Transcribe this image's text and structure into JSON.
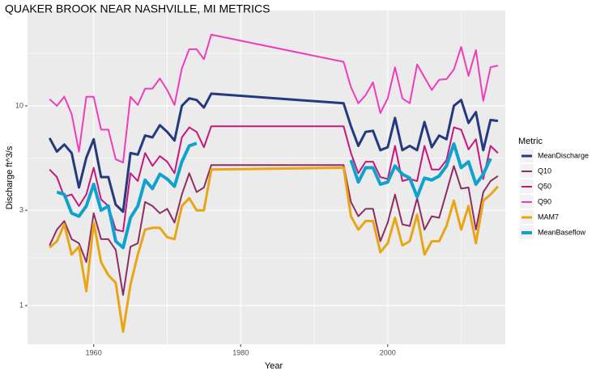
{
  "chart_data": {
    "type": "line",
    "title": "QUAKER BROOK NEAR NASHVILLE, MI  METRICS",
    "x_label": "Year",
    "y_label": "Discharge ft^3/s",
    "legend_title": "Metric",
    "legend_position": "right",
    "log_y": true,
    "grid": true,
    "xlim": [
      1951,
      2016
    ],
    "xticks": [
      1960,
      1980,
      2000
    ],
    "ylim": [
      0.64,
      30
    ],
    "yticks": [
      1,
      3,
      10
    ],
    "x": [
      1954,
      1955,
      1956,
      1957,
      1958,
      1959,
      1960,
      1961,
      1962,
      1963,
      1964,
      1965,
      1966,
      1967,
      1968,
      1969,
      1970,
      1971,
      1972,
      1973,
      1974,
      1975,
      1976,
      1994,
      1995,
      1996,
      1997,
      1998,
      1999,
      2000,
      2001,
      2002,
      2003,
      2004,
      2005,
      2006,
      2007,
      2008,
      2009,
      2010,
      2011,
      2012,
      2013,
      2014,
      2015
    ],
    "series": [
      {
        "name": "MeanDischarge",
        "color": "#25397f",
        "line_width": 3,
        "values": [
          6.9,
          5.9,
          6.4,
          5.8,
          3.9,
          5.5,
          6.8,
          4.4,
          4.4,
          3.2,
          2.95,
          5.8,
          5.7,
          7.1,
          6.95,
          8.0,
          7.4,
          6.7,
          10,
          10.9,
          10.7,
          9.8,
          11.5,
          10.3,
          7.9,
          6.3,
          7.4,
          7.5,
          6.0,
          6.2,
          8.7,
          6.0,
          6.3,
          6.0,
          8.3,
          6.2,
          7.1,
          6.8,
          10,
          10.7,
          8.2,
          9.3,
          6.0,
          8.5,
          8.4
        ]
      },
      {
        "name": "Q10",
        "color": "#8e2d62",
        "line_width": 2,
        "values": [
          2.0,
          2.4,
          2.65,
          2.15,
          2.05,
          1.65,
          2.9,
          2.15,
          2.15,
          1.9,
          1.13,
          1.97,
          2.05,
          3.3,
          3.15,
          2.9,
          3.05,
          2.6,
          3.6,
          4.6,
          3.7,
          3.9,
          5.05,
          5.05,
          3.3,
          2.8,
          3.05,
          3.05,
          2.1,
          2.6,
          3.6,
          2.55,
          2.5,
          3.45,
          2.4,
          2.8,
          2.75,
          3.7,
          5.0,
          3.85,
          3.9,
          2.4,
          3.7,
          4.2,
          4.45
        ]
      },
      {
        "name": "Q50",
        "color": "#c4197c",
        "line_width": 2,
        "values": [
          4.8,
          4.4,
          3.5,
          3.6,
          3.15,
          3.6,
          4.9,
          3.4,
          3.15,
          2.4,
          2.35,
          4.6,
          4.2,
          5.8,
          5.0,
          5.6,
          5.25,
          4.6,
          6.95,
          7.8,
          7.4,
          6.2,
          7.9,
          7.9,
          5.8,
          4.6,
          5.25,
          5.25,
          4.4,
          4.3,
          6.3,
          4.2,
          4.3,
          4.2,
          6.3,
          4.8,
          4.8,
          5.35,
          7.8,
          7.6,
          6.05,
          6.8,
          4.3,
          6.3,
          5.8
        ]
      },
      {
        "name": "Q90",
        "color": "#f03cbc",
        "line_width": 2,
        "values": [
          10.8,
          10,
          11.1,
          9.1,
          5.9,
          11.1,
          11.1,
          7.6,
          7.6,
          5.4,
          5.2,
          11.1,
          10.1,
          12.2,
          12.2,
          13.7,
          12,
          10.1,
          15.4,
          19.2,
          19.2,
          17.1,
          22.7,
          16.6,
          12.4,
          10.3,
          11.3,
          13.1,
          9.2,
          10.9,
          15.6,
          10.9,
          10.3,
          16.1,
          13.9,
          12,
          13.5,
          13.6,
          15.2,
          19.7,
          14.1,
          19.0,
          10.6,
          15.6,
          15.9
        ]
      },
      {
        "name": "MAM7",
        "color": "#e8a616",
        "line_width": 3,
        "values": [
          1.95,
          2.1,
          2.55,
          1.8,
          1.97,
          1.18,
          2.6,
          1.65,
          1.42,
          1.3,
          0.74,
          1.27,
          1.8,
          2.4,
          2.45,
          2.45,
          2.2,
          2.15,
          3.15,
          3.45,
          3.0,
          3.0,
          4.8,
          4.9,
          2.8,
          2.4,
          2.65,
          2.65,
          1.85,
          2.05,
          2.75,
          2.0,
          2.1,
          2.85,
          1.8,
          2.1,
          2.1,
          2.5,
          3.35,
          2.4,
          3.15,
          2.05,
          3.35,
          3.6,
          3.95
        ]
      },
      {
        "name": "MeanBaseflow",
        "color": "#10a2cf",
        "line_width": 4,
        "values": [
          null,
          3.7,
          3.6,
          2.9,
          2.8,
          3.15,
          4.05,
          3.0,
          3.15,
          2.1,
          1.95,
          2.75,
          3.15,
          4.25,
          3.85,
          4.55,
          4.3,
          3.95,
          5.25,
          6.3,
          6.5,
          null,
          null,
          null,
          5.35,
          4.15,
          4.9,
          4.9,
          4.05,
          4.15,
          5.0,
          4.55,
          4.35,
          3.5,
          4.35,
          4.25,
          4.45,
          5.0,
          6.45,
          4.9,
          5.25,
          4.05,
          4.55,
          5.45,
          null
        ]
      }
    ]
  }
}
